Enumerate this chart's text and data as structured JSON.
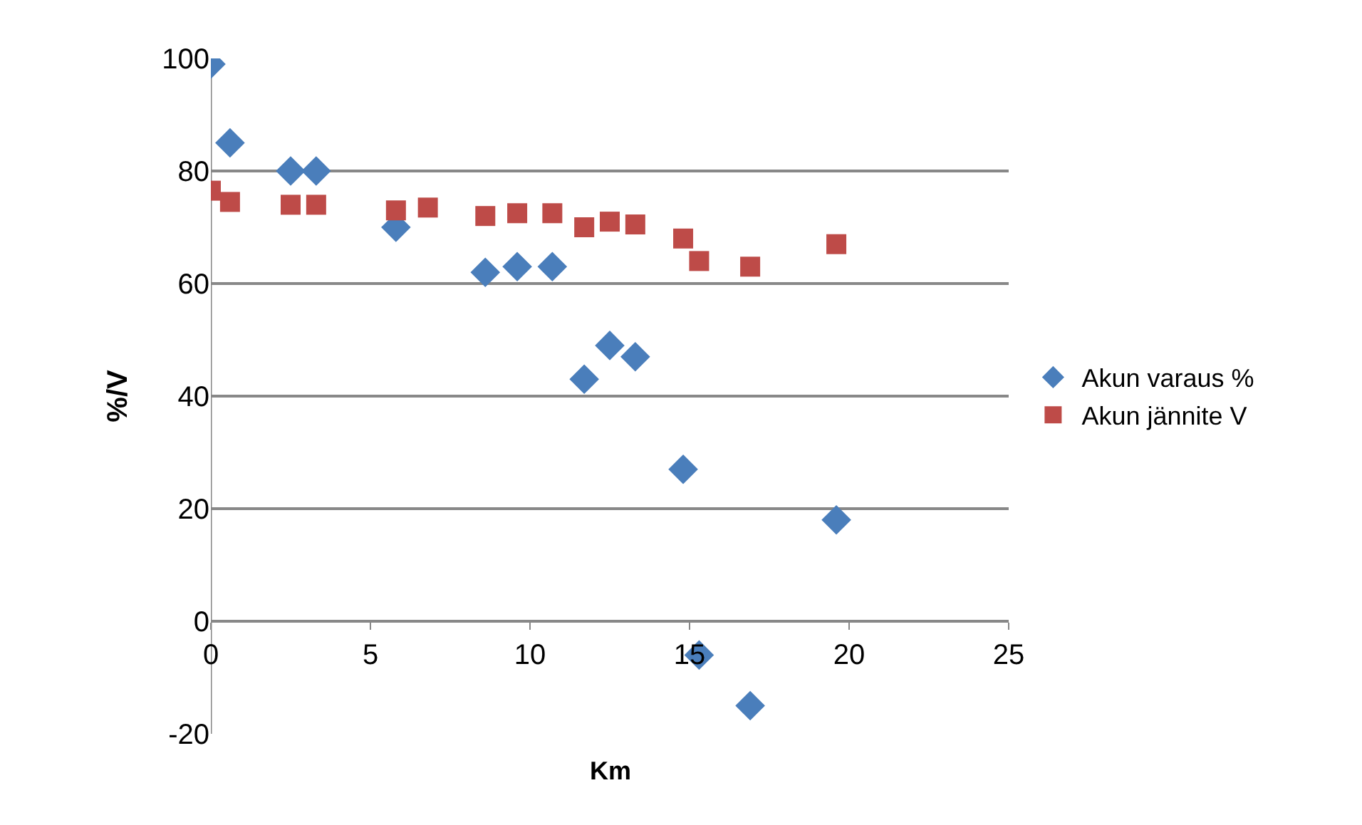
{
  "chart_data": {
    "type": "scatter",
    "xlabel": "Km",
    "ylabel": "%/V",
    "x": [
      0,
      0.6,
      2.5,
      3.3,
      5.8,
      6.8,
      8.6,
      9.6,
      10.7,
      11.7,
      12.5,
      13.3,
      14.8,
      15.3,
      16.9,
      19.6
    ],
    "series": [
      {
        "name": "Akun varaus %",
        "color": "#4a7ebb",
        "marker": "diamond",
        "values": [
          99,
          85,
          80,
          80,
          70,
          null,
          62,
          63,
          63,
          43,
          49,
          47,
          27,
          -6,
          -15,
          18
        ]
      },
      {
        "name": "Akun jännite V",
        "color": "#be4b48",
        "marker": "square",
        "values": [
          76.5,
          74.5,
          74,
          74,
          73,
          73.5,
          72,
          72.5,
          72.5,
          70,
          71,
          70.5,
          68,
          64,
          63,
          67
        ]
      }
    ],
    "xlim": [
      0,
      25
    ],
    "xticks": [
      0,
      5,
      10,
      15,
      20,
      25
    ],
    "ylim": [
      -20,
      100
    ],
    "yticks": [
      -20,
      0,
      20,
      40,
      60,
      80,
      100
    ],
    "grid": "y",
    "legend": "right"
  }
}
